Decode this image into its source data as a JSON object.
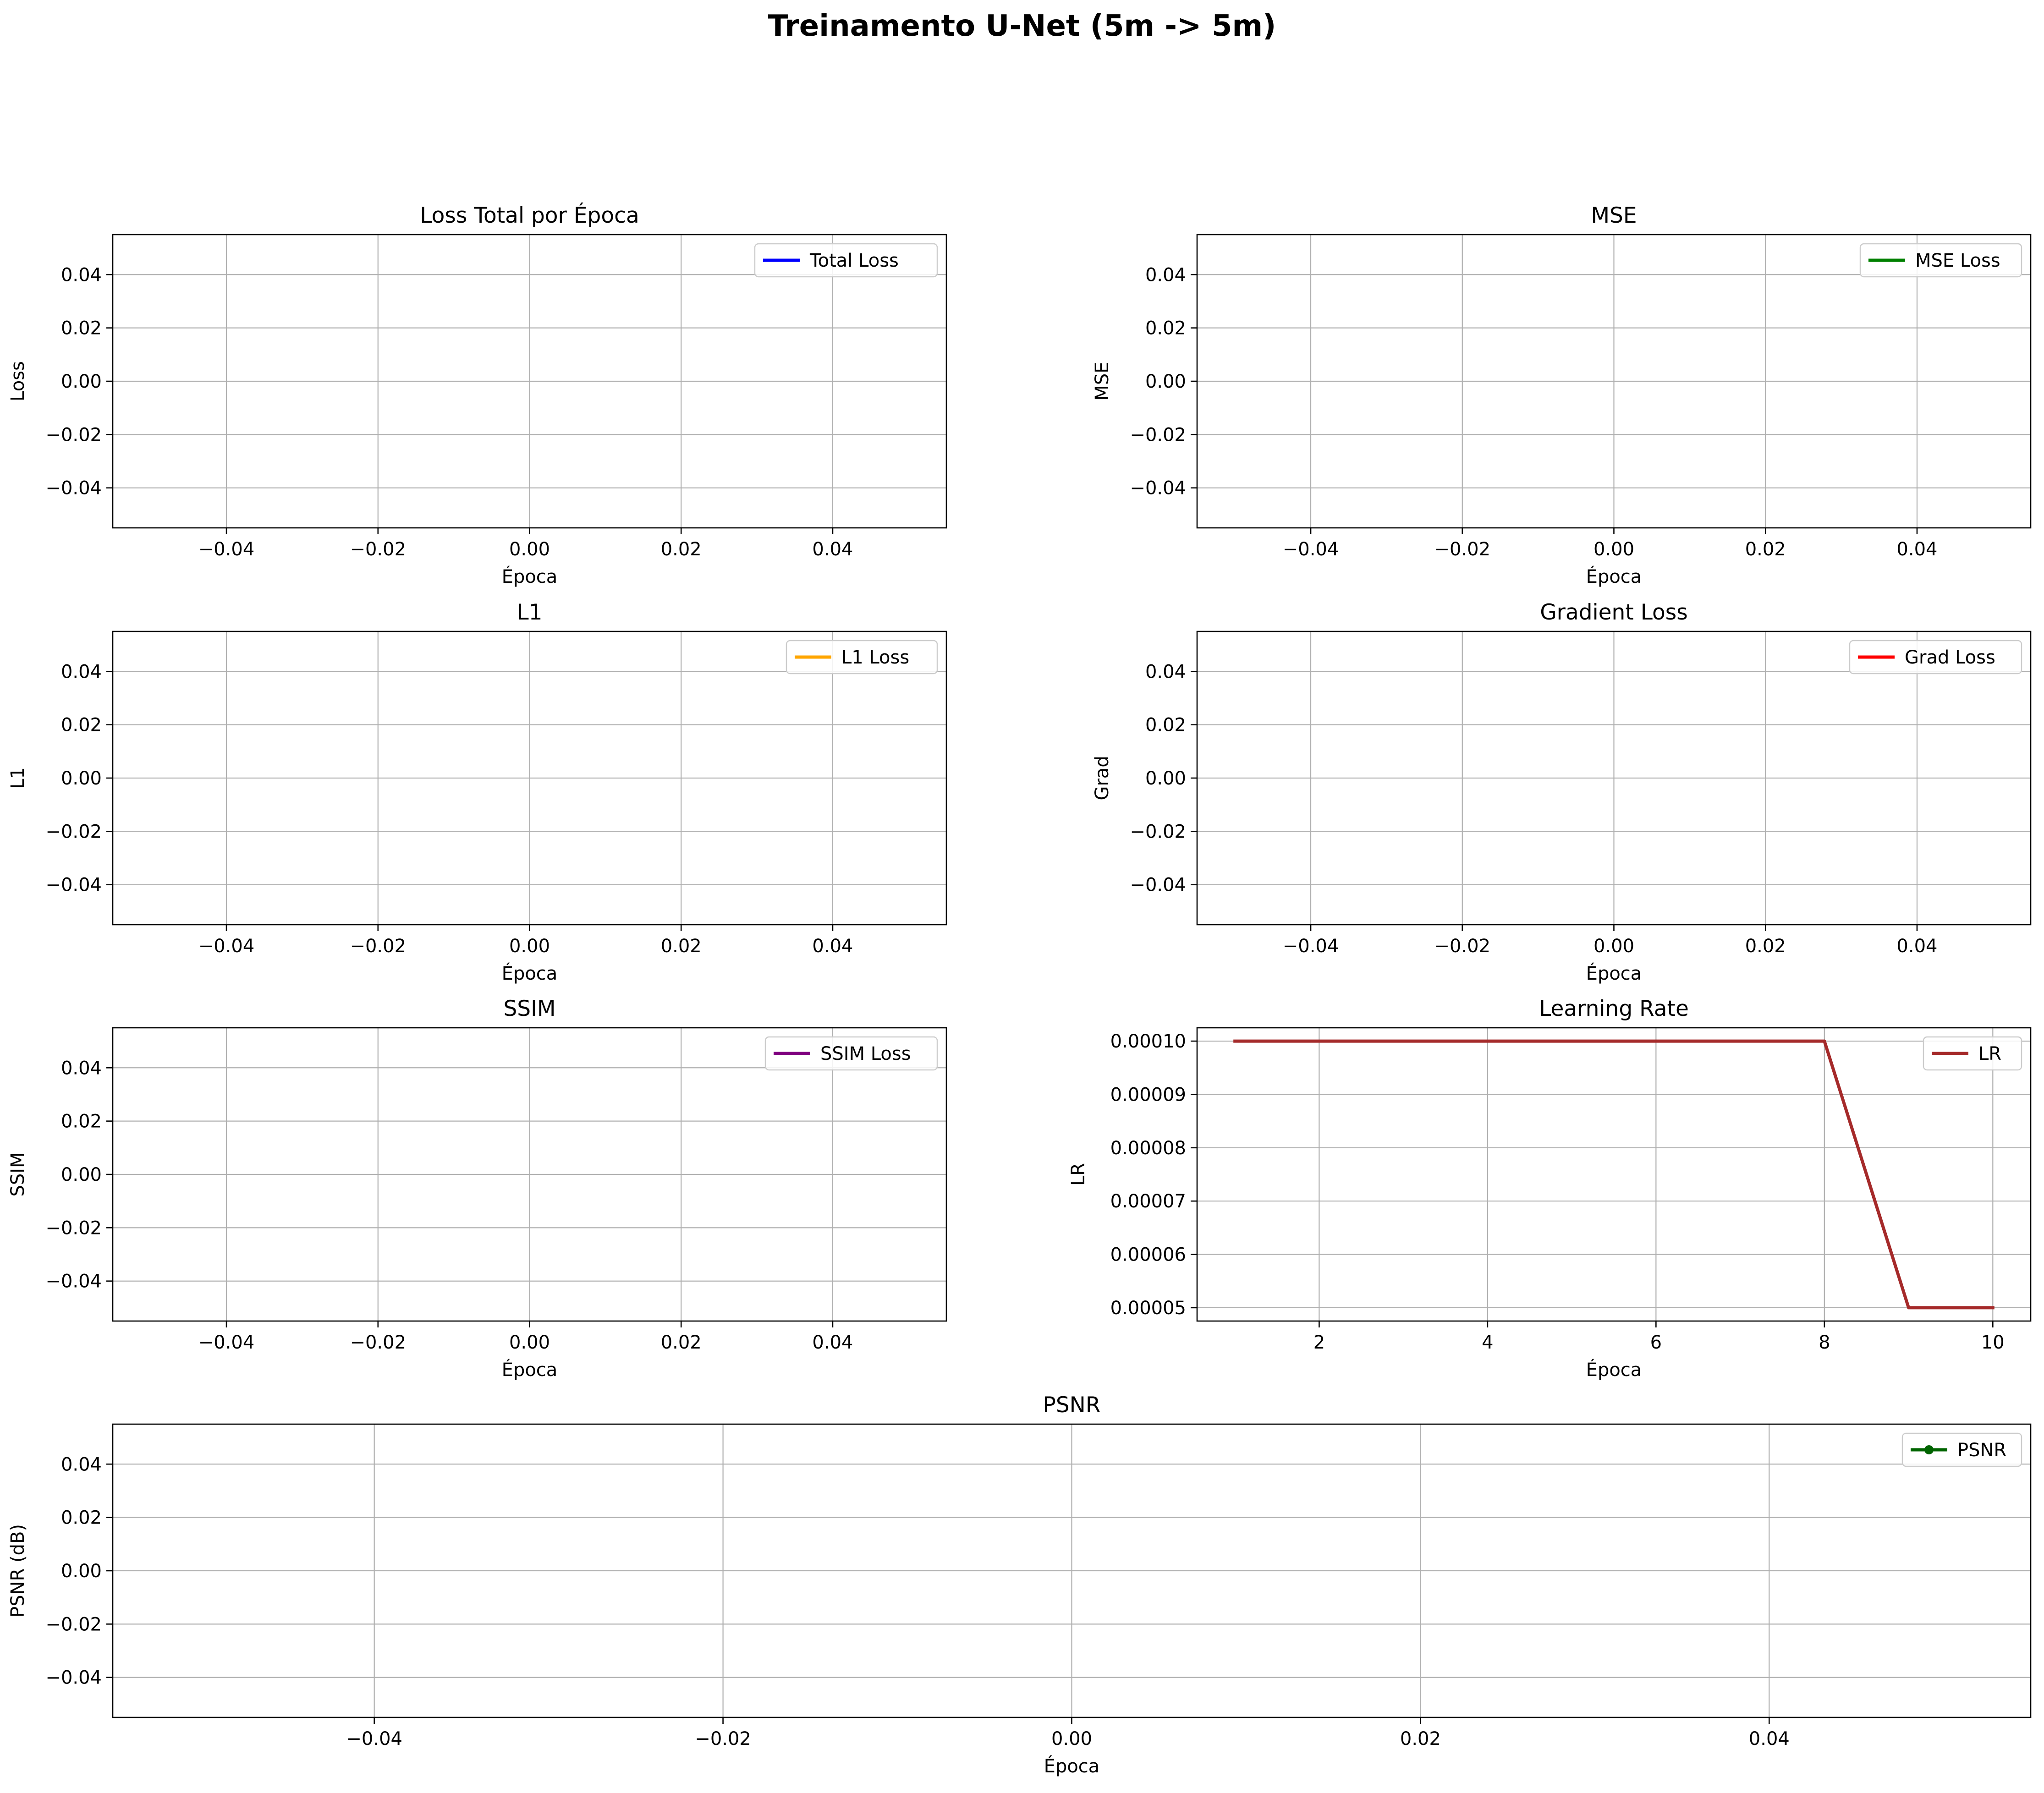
{
  "figure": {
    "suptitle": "Treinamento U-Net (5m -> 5m)"
  },
  "chart_data": [
    {
      "id": "total",
      "type": "line",
      "title": "Loss Total por Época",
      "xlabel": "Época",
      "ylabel": "Loss",
      "xlim": [
        -0.055,
        0.055
      ],
      "ylim": [
        -0.055,
        0.055
      ],
      "xticks": [
        -0.04,
        -0.02,
        0.0,
        0.02,
        0.04
      ],
      "xtick_labels": [
        "−0.04",
        "−0.02",
        "0.00",
        "0.02",
        "0.04"
      ],
      "yticks": [
        -0.04,
        -0.02,
        0.0,
        0.02,
        0.04
      ],
      "ytick_labels": [
        "−0.04",
        "−0.02",
        "0.00",
        "0.02",
        "0.04"
      ],
      "grid": true,
      "legend": "upper-right",
      "series": [
        {
          "name": "Total Loss",
          "color": "#0000ff",
          "marker": false,
          "x": [],
          "y": []
        }
      ]
    },
    {
      "id": "mse",
      "type": "line",
      "title": "MSE",
      "xlabel": "Época",
      "ylabel": "MSE",
      "xlim": [
        -0.055,
        0.055
      ],
      "ylim": [
        -0.055,
        0.055
      ],
      "xticks": [
        -0.04,
        -0.02,
        0.0,
        0.02,
        0.04
      ],
      "xtick_labels": [
        "−0.04",
        "−0.02",
        "0.00",
        "0.02",
        "0.04"
      ],
      "yticks": [
        -0.04,
        -0.02,
        0.0,
        0.02,
        0.04
      ],
      "ytick_labels": [
        "−0.04",
        "−0.02",
        "0.00",
        "0.02",
        "0.04"
      ],
      "grid": true,
      "legend": "upper-right",
      "series": [
        {
          "name": "MSE Loss",
          "color": "#008000",
          "marker": false,
          "x": [],
          "y": []
        }
      ]
    },
    {
      "id": "l1",
      "type": "line",
      "title": "L1",
      "xlabel": "Época",
      "ylabel": "L1",
      "xlim": [
        -0.055,
        0.055
      ],
      "ylim": [
        -0.055,
        0.055
      ],
      "xticks": [
        -0.04,
        -0.02,
        0.0,
        0.02,
        0.04
      ],
      "xtick_labels": [
        "−0.04",
        "−0.02",
        "0.00",
        "0.02",
        "0.04"
      ],
      "yticks": [
        -0.04,
        -0.02,
        0.0,
        0.02,
        0.04
      ],
      "ytick_labels": [
        "−0.04",
        "−0.02",
        "0.00",
        "0.02",
        "0.04"
      ],
      "grid": true,
      "legend": "upper-right",
      "series": [
        {
          "name": "L1 Loss",
          "color": "#ffa500",
          "marker": false,
          "x": [],
          "y": []
        }
      ]
    },
    {
      "id": "grad",
      "type": "line",
      "title": "Gradient Loss",
      "xlabel": "Época",
      "ylabel": "Grad",
      "xlim": [
        -0.055,
        0.055
      ],
      "ylim": [
        -0.055,
        0.055
      ],
      "xticks": [
        -0.04,
        -0.02,
        0.0,
        0.02,
        0.04
      ],
      "xtick_labels": [
        "−0.04",
        "−0.02",
        "0.00",
        "0.02",
        "0.04"
      ],
      "yticks": [
        -0.04,
        -0.02,
        0.0,
        0.02,
        0.04
      ],
      "ytick_labels": [
        "−0.04",
        "−0.02",
        "0.00",
        "0.02",
        "0.04"
      ],
      "grid": true,
      "legend": "upper-right",
      "series": [
        {
          "name": "Grad Loss",
          "color": "#ff0000",
          "marker": false,
          "x": [],
          "y": []
        }
      ]
    },
    {
      "id": "ssim",
      "type": "line",
      "title": "SSIM",
      "xlabel": "Época",
      "ylabel": "SSIM",
      "xlim": [
        -0.055,
        0.055
      ],
      "ylim": [
        -0.055,
        0.055
      ],
      "xticks": [
        -0.04,
        -0.02,
        0.0,
        0.02,
        0.04
      ],
      "xtick_labels": [
        "−0.04",
        "−0.02",
        "0.00",
        "0.02",
        "0.04"
      ],
      "yticks": [
        -0.04,
        -0.02,
        0.0,
        0.02,
        0.04
      ],
      "ytick_labels": [
        "−0.04",
        "−0.02",
        "0.00",
        "0.02",
        "0.04"
      ],
      "grid": true,
      "legend": "upper-right",
      "series": [
        {
          "name": "SSIM Loss",
          "color": "#800080",
          "marker": false,
          "x": [],
          "y": []
        }
      ]
    },
    {
      "id": "lr",
      "type": "line",
      "title": "Learning Rate",
      "xlabel": "Época",
      "ylabel": "LR",
      "xlim": [
        0.55,
        10.45
      ],
      "ylim": [
        4.75e-05,
        0.0001025
      ],
      "xticks": [
        2,
        4,
        6,
        8,
        10
      ],
      "xtick_labels": [
        "2",
        "4",
        "6",
        "8",
        "10"
      ],
      "yticks": [
        5e-05,
        6e-05,
        7e-05,
        8e-05,
        9e-05,
        0.0001
      ],
      "ytick_labels": [
        "0.00005",
        "0.00006",
        "0.00007",
        "0.00008",
        "0.00009",
        "0.00010"
      ],
      "grid": true,
      "legend": "upper-right",
      "series": [
        {
          "name": "LR",
          "color": "#a52a2a",
          "marker": false,
          "x": [
            1,
            2,
            3,
            4,
            5,
            6,
            7,
            8,
            9,
            10
          ],
          "y": [
            0.0001,
            0.0001,
            0.0001,
            0.0001,
            0.0001,
            0.0001,
            0.0001,
            0.0001,
            5e-05,
            5e-05
          ]
        }
      ]
    },
    {
      "id": "psnr",
      "type": "line",
      "title": "PSNR",
      "xlabel": "Época",
      "ylabel": "PSNR (dB)",
      "xlim": [
        -0.055,
        0.055
      ],
      "ylim": [
        -0.055,
        0.055
      ],
      "xticks": [
        -0.04,
        -0.02,
        0.0,
        0.02,
        0.04
      ],
      "xtick_labels": [
        "−0.04",
        "−0.02",
        "0.00",
        "0.02",
        "0.04"
      ],
      "yticks": [
        -0.04,
        -0.02,
        0.0,
        0.02,
        0.04
      ],
      "ytick_labels": [
        "−0.04",
        "−0.02",
        "0.00",
        "0.02",
        "0.04"
      ],
      "grid": true,
      "legend": "upper-right",
      "series": [
        {
          "name": "PSNR",
          "color": "#006400",
          "marker": true,
          "x": [],
          "y": []
        }
      ]
    }
  ]
}
